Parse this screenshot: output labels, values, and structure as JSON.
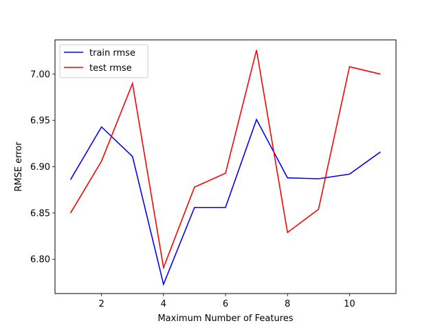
{
  "chart_data": {
    "type": "line",
    "title": "",
    "xlabel": "Maximum Number of Features",
    "ylabel": "RMSE error",
    "x": [
      1,
      2,
      3,
      4,
      5,
      6,
      7,
      8,
      9,
      10,
      11
    ],
    "xlim": [
      0.5,
      11.5
    ],
    "ylim": [
      6.763,
      7.037
    ],
    "xticks": [
      2,
      4,
      6,
      8,
      10
    ],
    "yticks": [
      6.8,
      6.85,
      6.9,
      6.95,
      7.0
    ],
    "ytick_labels": [
      "6.80",
      "6.85",
      "6.90",
      "6.95",
      "7.00"
    ],
    "grid": false,
    "legend_position": "top-left",
    "series": [
      {
        "name": "train rmse",
        "color": "#0000ff",
        "values": [
          6.886,
          6.943,
          6.911,
          6.773,
          6.856,
          6.856,
          6.951,
          6.888,
          6.887,
          6.892,
          6.916
        ]
      },
      {
        "name": "test rmse",
        "color": "#ff0000",
        "values": [
          6.85,
          6.906,
          6.99,
          6.791,
          6.878,
          6.893,
          7.026,
          6.829,
          6.854,
          7.008,
          7.0
        ]
      }
    ]
  }
}
